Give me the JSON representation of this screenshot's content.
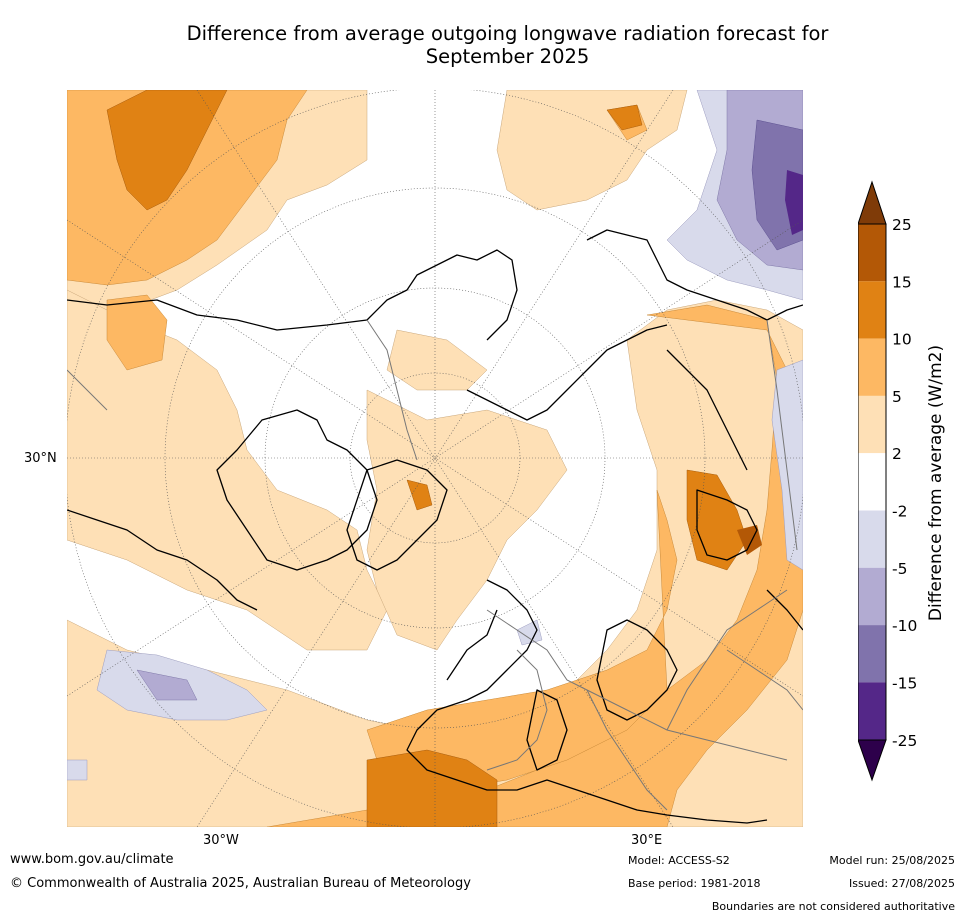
{
  "title_line1": "Difference from average outgoing longwave radiation forecast for",
  "title_line2": "September 2025",
  "map": {
    "lat_label": "30°N",
    "lon_labels": [
      "30°W",
      "30°E"
    ]
  },
  "colorbar": {
    "label": "Difference from average (W/m2)",
    "ticks": [
      "25",
      "15",
      "10",
      "5",
      "2",
      "-2",
      "-5",
      "-10",
      "-15",
      "-25"
    ],
    "colors": {
      "above_25": "#7f3b08",
      "15_25": "#b35806",
      "10_15": "#e08214",
      "5_10": "#fdb863",
      "2_5": "#fee0b6",
      "neutral": "#ffffff",
      "m2_m5": "#d8daeb",
      "m5_m10": "#b2abd2",
      "m10_m15": "#8073ac",
      "m15_m25": "#542788",
      "below_m25": "#2d004b"
    }
  },
  "footer": {
    "website": "www.bom.gov.au/climate",
    "copyright": "© Commonwealth of Australia 2025, Australian Bureau of Meteorology",
    "model": "Model: ACCESS-S2",
    "base_period": "Base period: 1981-2018",
    "model_run": "Model run: 25/08/2025",
    "issued": "Issued: 27/08/2025",
    "boundaries_note": "Boundaries are not considered authoritative"
  }
}
